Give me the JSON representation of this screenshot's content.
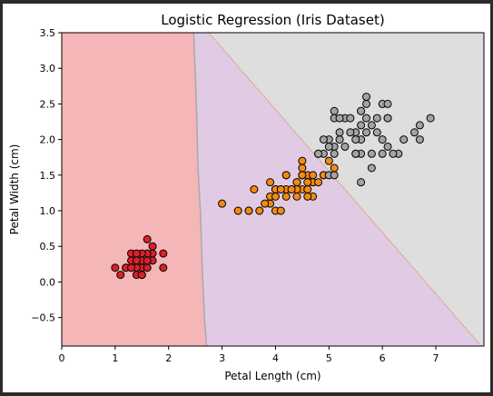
{
  "chart_data": {
    "type": "scatter",
    "title": "Logistic Regression (Iris Dataset)",
    "xlabel": "Petal Length (cm)",
    "ylabel": "Petal Width (cm)",
    "xlim": [
      0,
      7.9
    ],
    "ylim": [
      -0.9,
      3.5
    ],
    "x_ticks": [
      0,
      1,
      2,
      3,
      4,
      5,
      6,
      7
    ],
    "x_tick_labels": [
      "0",
      "1",
      "2",
      "3",
      "4",
      "5",
      "6",
      "7"
    ],
    "y_ticks": [
      -0.5,
      0.0,
      0.5,
      1.0,
      1.5,
      2.0,
      2.5,
      3.0,
      3.5
    ],
    "y_tick_labels": [
      "−0.5",
      "0.0",
      "0.5",
      "1.0",
      "1.5",
      "2.0",
      "2.5",
      "3.0",
      "3.5"
    ],
    "grid": false,
    "decision_regions": [
      {
        "class": 0,
        "color": "#f4b6b6"
      },
      {
        "class": 1,
        "color": "#e1cbe4"
      },
      {
        "class": 2,
        "color": "#dedede"
      }
    ],
    "boundary_0_1": {
      "color": "#a9a9a9",
      "points": [
        [
          2.47,
          3.5
        ],
        [
          2.52,
          2.5
        ],
        [
          2.55,
          1.6
        ],
        [
          2.6,
          0.9
        ],
        [
          2.63,
          0.2
        ],
        [
          2.67,
          -0.5
        ],
        [
          2.71,
          -0.9
        ]
      ]
    },
    "boundary_1_2": {
      "color": "#d9a080",
      "points": [
        [
          2.75,
          3.5
        ],
        [
          7.85,
          -0.9
        ]
      ]
    },
    "series": [
      {
        "class": 0,
        "color": "#d8212b",
        "points": [
          [
            1.4,
            0.2
          ],
          [
            1.3,
            0.2
          ],
          [
            1.5,
            0.2
          ],
          [
            1.7,
            0.4
          ],
          [
            1.4,
            0.3
          ],
          [
            1.5,
            0.1
          ],
          [
            1.6,
            0.2
          ],
          [
            1.1,
            0.1
          ],
          [
            1.2,
            0.2
          ],
          [
            1.0,
            0.2
          ],
          [
            1.7,
            0.5
          ],
          [
            1.9,
            0.2
          ],
          [
            1.6,
            0.4
          ],
          [
            1.3,
            0.3
          ],
          [
            1.6,
            0.6
          ],
          [
            1.9,
            0.4
          ],
          [
            1.5,
            0.4
          ],
          [
            1.4,
            0.1
          ],
          [
            1.2,
            0.2
          ],
          [
            1.6,
            0.2
          ],
          [
            1.5,
            0.3
          ],
          [
            1.3,
            0.4
          ],
          [
            1.4,
            0.4
          ],
          [
            1.7,
            0.3
          ],
          [
            1.5,
            0.3
          ],
          [
            1.4,
            0.2
          ],
          [
            1.6,
            0.3
          ],
          [
            1.5,
            0.1
          ],
          [
            1.3,
            0.2
          ],
          [
            1.4,
            0.3
          ]
        ]
      },
      {
        "class": 1,
        "color": "#f48a13",
        "points": [
          [
            4.7,
            1.4
          ],
          [
            4.5,
            1.5
          ],
          [
            4.9,
            1.5
          ],
          [
            4.0,
            1.3
          ],
          [
            4.6,
            1.5
          ],
          [
            4.5,
            1.3
          ],
          [
            3.3,
            1.0
          ],
          [
            4.6,
            1.3
          ],
          [
            3.9,
            1.4
          ],
          [
            3.5,
            1.0
          ],
          [
            4.2,
            1.5
          ],
          [
            4.0,
            1.0
          ],
          [
            4.7,
            1.4
          ],
          [
            3.6,
            1.3
          ],
          [
            4.4,
            1.4
          ],
          [
            4.5,
            1.5
          ],
          [
            4.1,
            1.0
          ],
          [
            3.9,
            1.1
          ],
          [
            4.8,
            1.8
          ],
          [
            4.0,
            1.3
          ],
          [
            4.9,
            1.5
          ],
          [
            4.7,
            1.2
          ],
          [
            4.3,
            1.3
          ],
          [
            4.4,
            1.4
          ],
          [
            4.8,
            1.4
          ],
          [
            5.0,
            1.7
          ],
          [
            4.5,
            1.5
          ],
          [
            3.5,
            1.0
          ],
          [
            3.8,
            1.1
          ],
          [
            3.7,
            1.0
          ],
          [
            3.9,
            1.2
          ],
          [
            5.1,
            1.6
          ],
          [
            4.5,
            1.6
          ],
          [
            4.7,
            1.5
          ],
          [
            4.4,
            1.3
          ],
          [
            4.1,
            1.3
          ],
          [
            4.0,
            1.3
          ],
          [
            4.4,
            1.2
          ],
          [
            4.6,
            1.4
          ],
          [
            4.0,
            1.2
          ],
          [
            3.0,
            1.1
          ],
          [
            4.2,
            1.3
          ],
          [
            4.2,
            1.2
          ],
          [
            4.3,
            1.3
          ],
          [
            4.1,
            1.3
          ],
          [
            4.5,
            1.7
          ],
          [
            4.2,
            1.5
          ],
          [
            4.6,
            1.2
          ]
        ]
      },
      {
        "class": 2,
        "color": "#a3a3a3",
        "points": [
          [
            6.0,
            2.5
          ],
          [
            5.1,
            1.9
          ],
          [
            5.9,
            2.1
          ],
          [
            5.6,
            1.8
          ],
          [
            5.8,
            2.2
          ],
          [
            6.6,
            2.1
          ],
          [
            6.3,
            1.8
          ],
          [
            5.8,
            1.8
          ],
          [
            6.1,
            2.5
          ],
          [
            5.3,
            1.9
          ],
          [
            5.5,
            2.1
          ],
          [
            5.0,
            2.0
          ],
          [
            5.1,
            2.4
          ],
          [
            5.3,
            2.3
          ],
          [
            5.5,
            1.8
          ],
          [
            6.7,
            2.2
          ],
          [
            6.9,
            2.3
          ],
          [
            5.0,
            1.5
          ],
          [
            5.7,
            2.3
          ],
          [
            4.9,
            2.0
          ],
          [
            6.7,
            2.0
          ],
          [
            4.9,
            1.8
          ],
          [
            5.7,
            2.1
          ],
          [
            6.0,
            1.8
          ],
          [
            4.8,
            1.8
          ],
          [
            5.8,
            1.6
          ],
          [
            6.1,
            1.9
          ],
          [
            6.4,
            2.0
          ],
          [
            5.6,
            2.2
          ],
          [
            5.1,
            1.5
          ],
          [
            5.6,
            1.4
          ],
          [
            6.1,
            2.3
          ],
          [
            5.6,
            2.4
          ],
          [
            5.5,
            1.8
          ],
          [
            5.4,
            2.1
          ],
          [
            5.6,
            2.4
          ],
          [
            5.1,
            2.3
          ],
          [
            5.9,
            2.3
          ],
          [
            5.7,
            2.5
          ],
          [
            5.2,
            2.3
          ],
          [
            5.0,
            1.9
          ],
          [
            5.2,
            2.0
          ],
          [
            5.4,
            2.3
          ],
          [
            5.1,
            1.8
          ],
          [
            5.6,
            2.0
          ],
          [
            6.1,
            2.3
          ],
          [
            5.2,
            2.1
          ],
          [
            5.5,
            2.0
          ],
          [
            6.2,
            1.8
          ],
          [
            5.7,
            2.6
          ],
          [
            6.0,
            2.0
          ]
        ]
      }
    ]
  }
}
